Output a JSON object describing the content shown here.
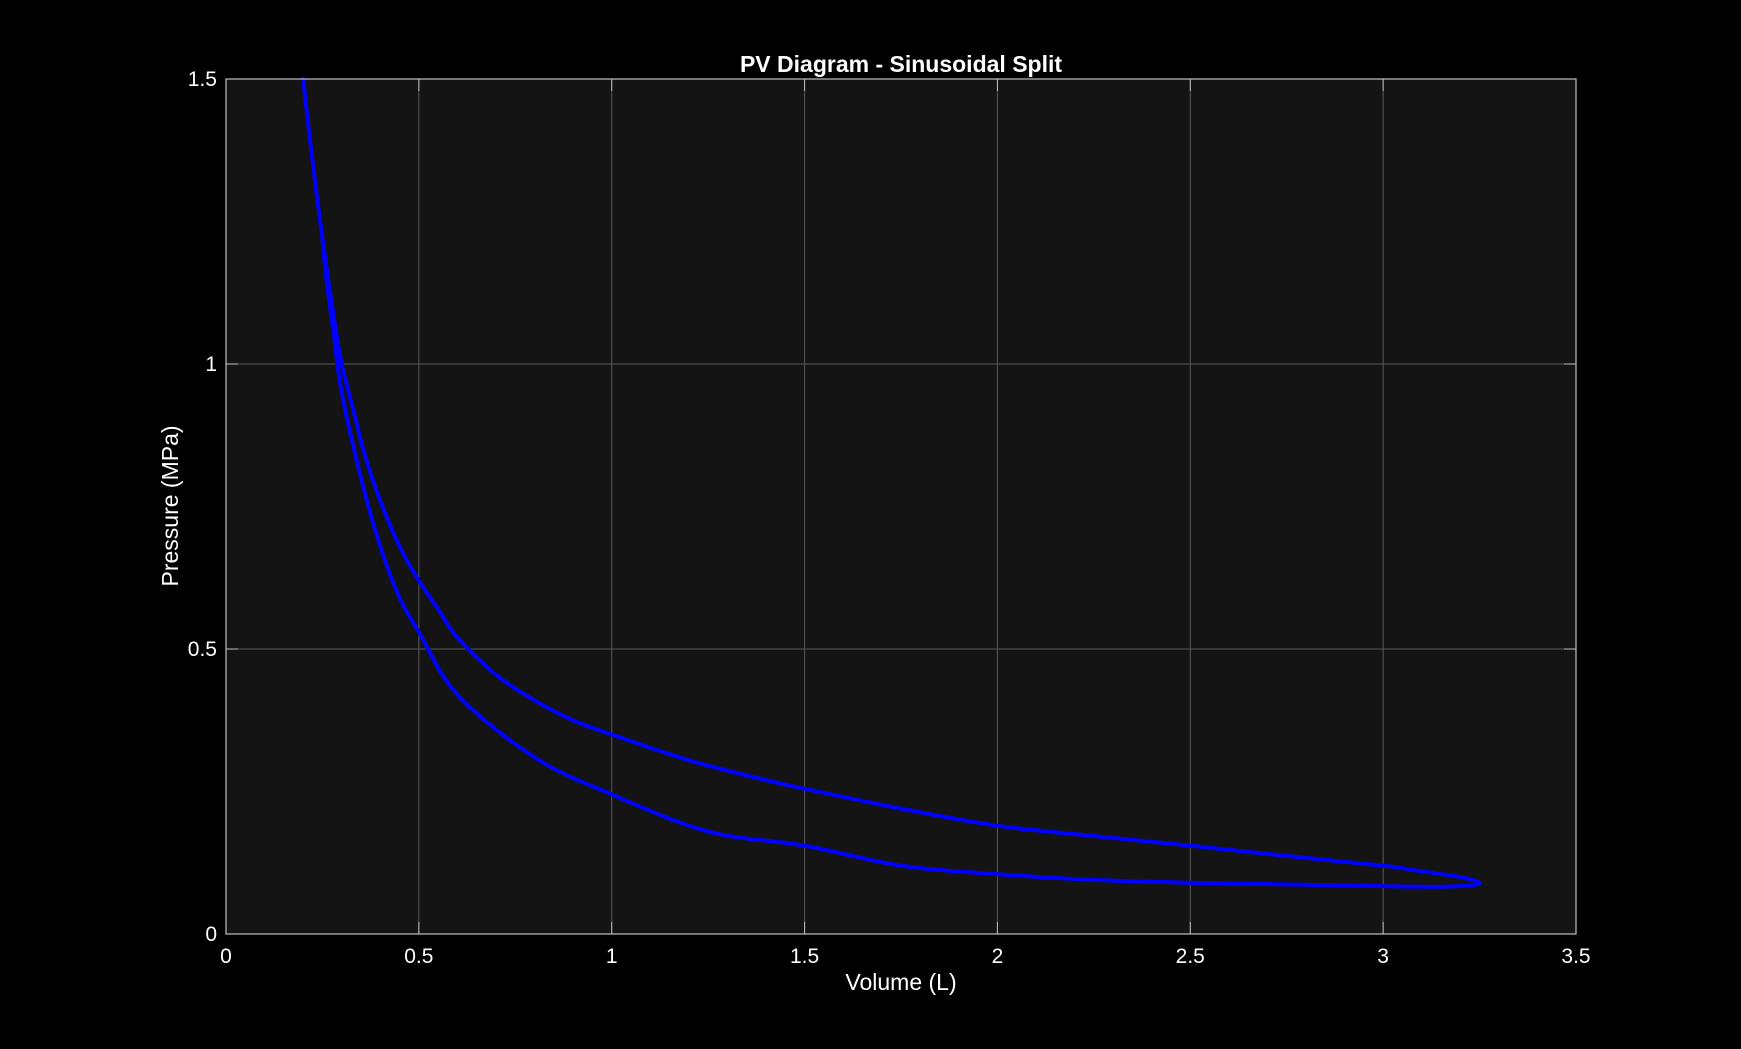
{
  "chart_data": {
    "type": "line",
    "title": "PV Diagram - Sinusoidal Split",
    "xlabel": "Volume (L)",
    "ylabel": "Pressure (MPa)",
    "xlim": [
      0,
      3.5
    ],
    "ylim": [
      0,
      1.5
    ],
    "xticks": [
      0,
      0.5,
      1,
      1.5,
      2,
      2.5,
      3,
      3.5
    ],
    "yticks": [
      0,
      0.5,
      1,
      1.5
    ],
    "xtick_labels": [
      "0",
      "0.5",
      "1",
      "1.5",
      "2",
      "2.5",
      "3",
      "3.5"
    ],
    "ytick_labels": [
      "0",
      "0.5",
      "1",
      "1.5"
    ],
    "grid": true,
    "series": [
      {
        "color": "#0000ff",
        "x": [
          0.2,
          0.22,
          0.25,
          0.28,
          0.3,
          0.33,
          0.36,
          0.4,
          0.45,
          0.5,
          0.55,
          0.6,
          0.7,
          0.8,
          0.9,
          1.0,
          1.2,
          1.4,
          1.5,
          1.75,
          2.0,
          2.25,
          2.5,
          2.75,
          3.0,
          3.1,
          3.2,
          3.25,
          3.22,
          3.15,
          3.0,
          2.75,
          2.5,
          2.25,
          2.0,
          1.75,
          1.5,
          1.25,
          1.0,
          0.8,
          0.6,
          0.5,
          0.45,
          0.4,
          0.35,
          0.3,
          0.28,
          0.26,
          0.25
        ],
        "y": [
          1.5,
          1.38,
          1.22,
          1.08,
          1.0,
          0.92,
          0.84,
          0.76,
          0.68,
          0.62,
          0.57,
          0.52,
          0.455,
          0.41,
          0.375,
          0.35,
          0.305,
          0.27,
          0.255,
          0.22,
          0.19,
          0.172,
          0.155,
          0.137,
          0.12,
          0.11,
          0.1,
          0.09,
          0.085,
          0.083,
          0.084,
          0.087,
          0.09,
          0.095,
          0.105,
          0.12,
          0.155,
          0.18,
          0.245,
          0.31,
          0.42,
          0.53,
          0.59,
          0.68,
          0.8,
          0.95,
          1.05,
          1.15,
          1.22
        ]
      }
    ]
  }
}
